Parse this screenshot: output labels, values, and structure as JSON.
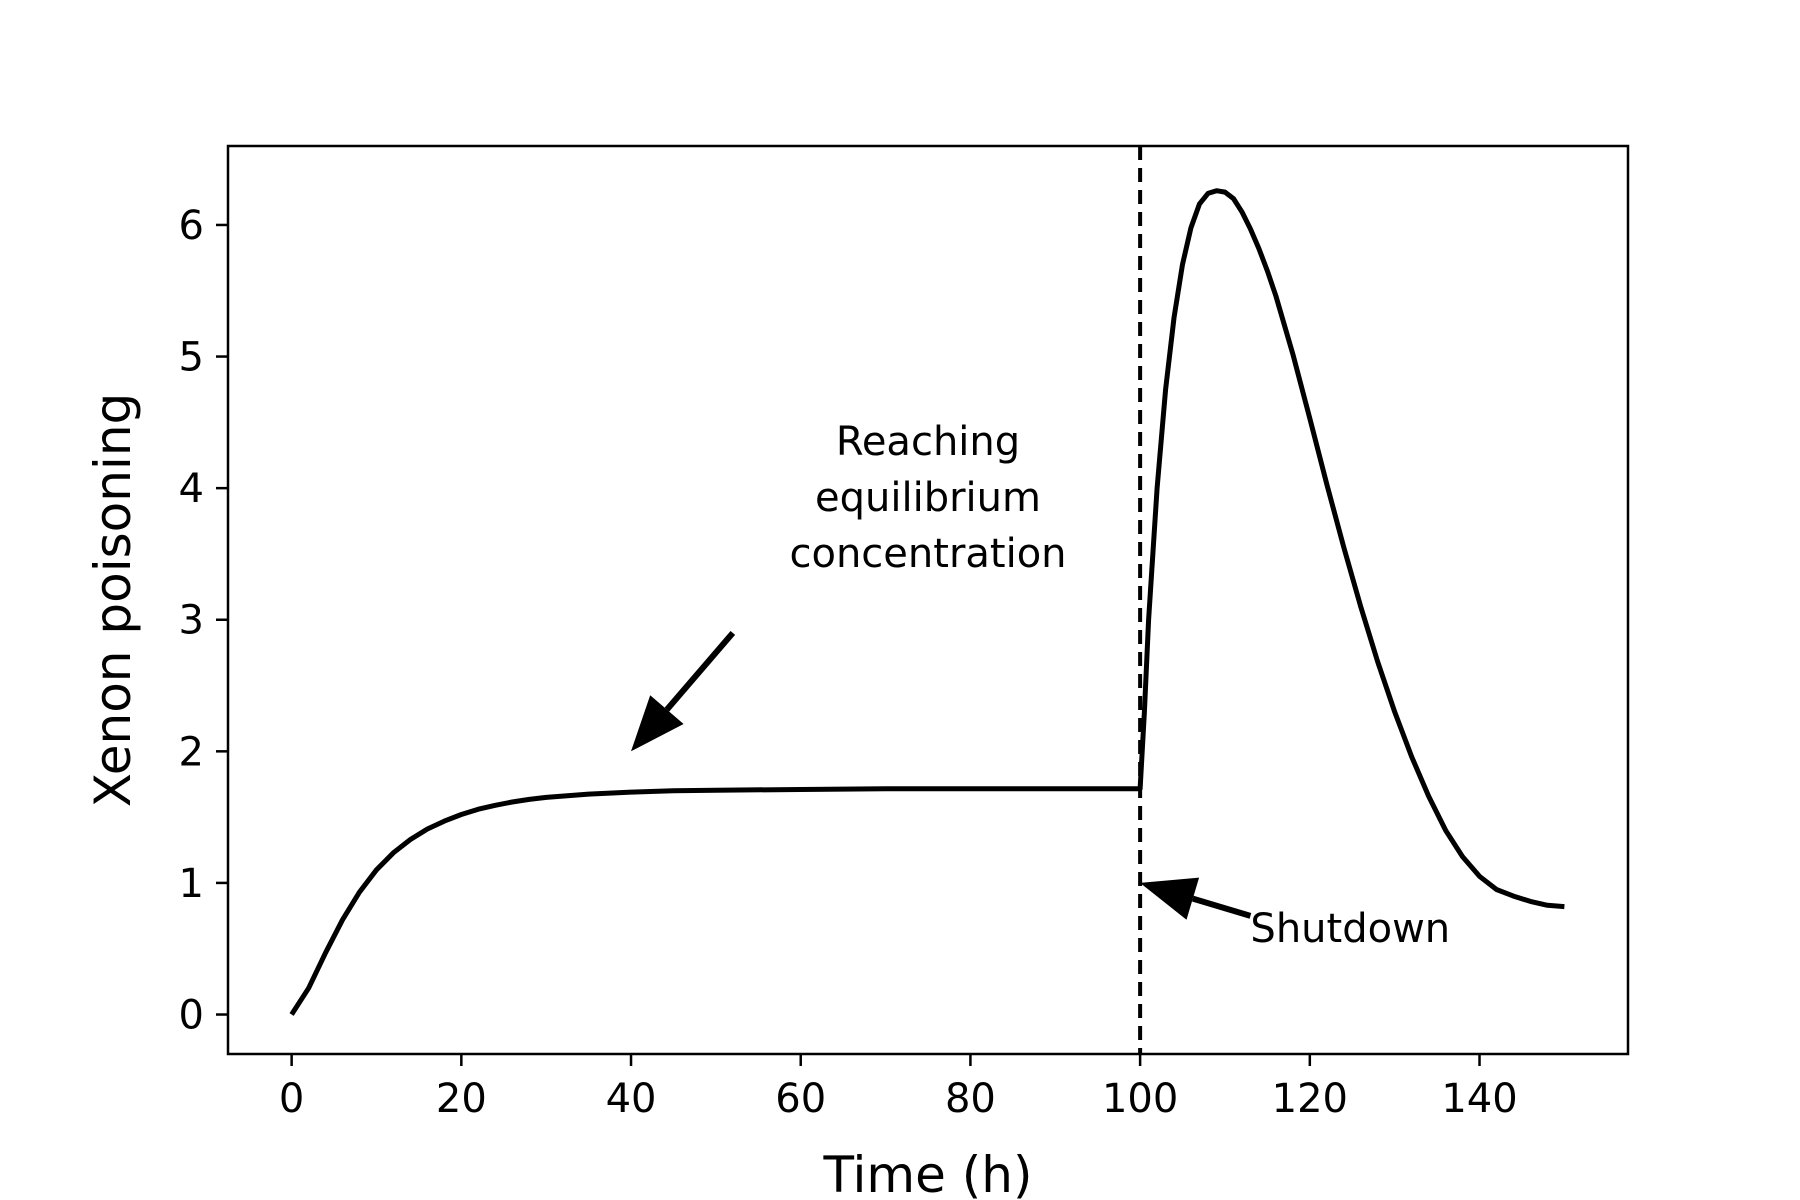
{
  "chart_data": {
    "type": "line",
    "title": "",
    "xlabel": "Time (h)",
    "ylabel": "Xenon poisoning",
    "xlim": [
      -7.5,
      157.5
    ],
    "ylim": [
      -0.3,
      6.6
    ],
    "xticks": [
      0,
      20,
      40,
      60,
      80,
      100,
      120,
      140
    ],
    "xtick_labels": [
      "0",
      "20",
      "40",
      "60",
      "80",
      "100",
      "120",
      "140"
    ],
    "yticks": [
      0,
      1,
      2,
      3,
      4,
      5,
      6
    ],
    "ytick_labels": [
      "0",
      "1",
      "2",
      "3",
      "4",
      "5",
      "6"
    ],
    "grid": false,
    "legend": "none",
    "line_color": "#000000",
    "series": [
      {
        "x": [
          0,
          2,
          4,
          6,
          8,
          10,
          12,
          14,
          16,
          18,
          20,
          22,
          24,
          26,
          28,
          30,
          35,
          40,
          45,
          50,
          60,
          70,
          80,
          90,
          100,
          100.5,
          101,
          102,
          103,
          104,
          105,
          106,
          107,
          108,
          109,
          110,
          111,
          112,
          113,
          114,
          115,
          116,
          118,
          120,
          122,
          124,
          126,
          128,
          130,
          132,
          134,
          136,
          138,
          140,
          142,
          144,
          146,
          148,
          150
        ],
        "y": [
          0,
          0.2,
          0.47,
          0.72,
          0.93,
          1.1,
          1.23,
          1.33,
          1.41,
          1.47,
          1.52,
          1.56,
          1.59,
          1.615,
          1.635,
          1.65,
          1.675,
          1.69,
          1.7,
          1.705,
          1.71,
          1.715,
          1.715,
          1.715,
          1.715,
          2.3,
          3.0,
          4.0,
          4.75,
          5.3,
          5.7,
          5.98,
          6.16,
          6.24,
          6.26,
          6.25,
          6.2,
          6.1,
          5.97,
          5.82,
          5.65,
          5.46,
          5.02,
          4.53,
          4.03,
          3.55,
          3.1,
          2.68,
          2.3,
          1.96,
          1.66,
          1.4,
          1.2,
          1.05,
          0.95,
          0.9,
          0.86,
          0.83,
          0.82
        ]
      }
    ],
    "vline": {
      "x": 100,
      "style": "dashed"
    },
    "annotations": [
      {
        "lines": [
          "Reaching",
          "equilibrium",
          "concentration"
        ],
        "text_x": 75,
        "text_y": 3.4,
        "arrow_from_x": 52,
        "arrow_from_y": 2.9,
        "arrow_to_x": 40,
        "arrow_to_y": 2.0
      },
      {
        "lines": [
          "Shutdown"
        ],
        "text_x": 113,
        "text_y": 0.55,
        "arrow_from_x": 113,
        "arrow_from_y": 0.75,
        "arrow_to_x": 100,
        "arrow_to_y": 1.0
      }
    ]
  }
}
